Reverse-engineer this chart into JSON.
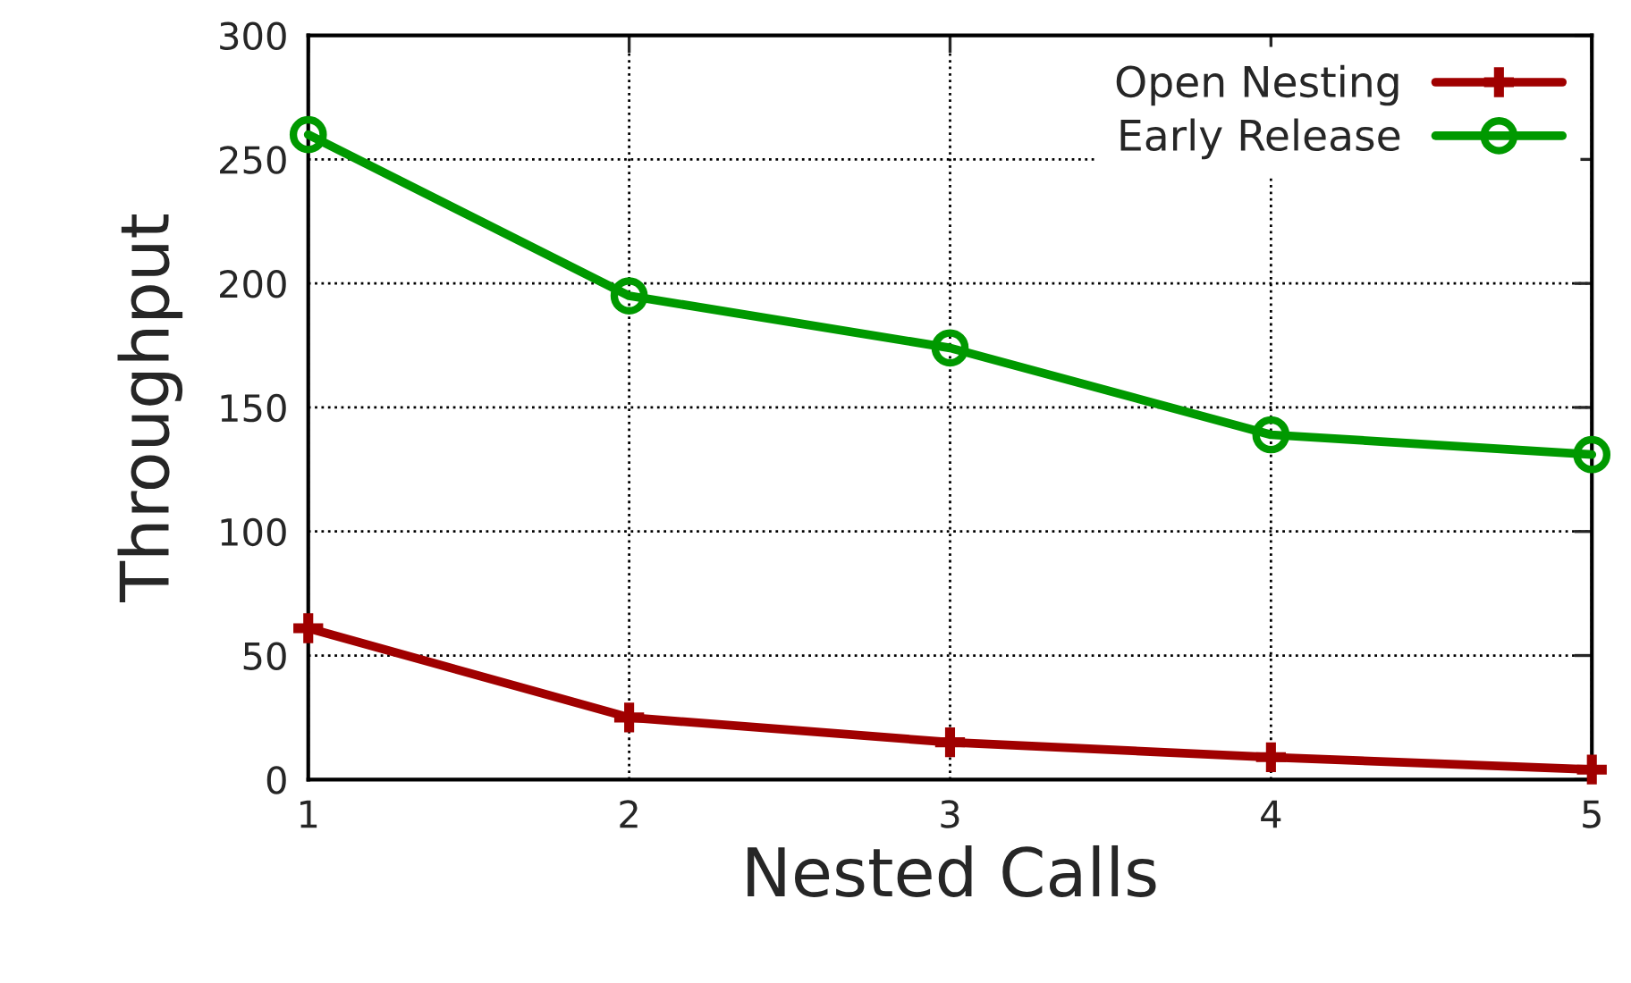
{
  "chart_data": {
    "type": "line",
    "xlabel": "Nested Calls",
    "ylabel": "Throughput",
    "x": [
      1,
      2,
      3,
      4,
      5
    ],
    "series": [
      {
        "name": "Open Nesting",
        "color": "#a00000",
        "marker": "cross",
        "values": [
          61,
          25,
          15,
          9,
          4
        ]
      },
      {
        "name": "Early Release",
        "color": "#009900",
        "marker": "circle",
        "values": [
          260,
          195,
          174,
          139,
          131
        ]
      }
    ],
    "xlim": [
      1,
      5
    ],
    "xticks": [
      1,
      2,
      3,
      4,
      5
    ],
    "ylim": [
      0,
      300
    ],
    "yticks": [
      0,
      50,
      100,
      150,
      200,
      250,
      300
    ],
    "grid": true,
    "legend": "top right",
    "line_style": "solid"
  }
}
